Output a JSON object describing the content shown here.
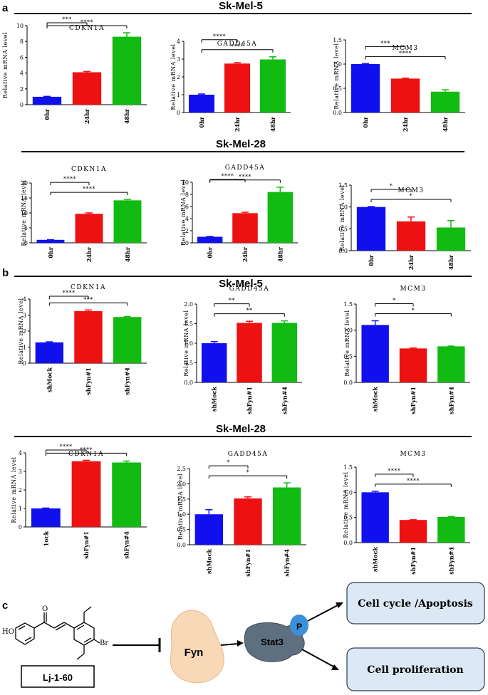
{
  "panel_labels": {
    "a": "a",
    "b": "b",
    "c": "c"
  },
  "section_titles": {
    "a_top": "Sk-Mel-5",
    "a_bottom": "Sk-Mel-28",
    "b_top": "Sk-Mel-5",
    "b_bottom": "Sk-Mel-28"
  },
  "colors": {
    "blue": "#1010ee",
    "red": "#ee1111",
    "green": "#11bb11"
  },
  "chart_data": [
    {
      "type": "bar",
      "title": "CDKN1A",
      "ylabel": "Relative mRNA level",
      "categories": [
        "0hr",
        "24hr",
        "48hr"
      ],
      "values": [
        1.0,
        4.1,
        8.6
      ],
      "errors": [
        0.05,
        0.1,
        0.5
      ],
      "ylim": [
        0,
        10
      ],
      "yticks": [
        0,
        2,
        4,
        6,
        8,
        10
      ],
      "ytick_labels": [
        "0",
        "2",
        "4",
        "6",
        "8",
        "10"
      ],
      "comparisons": [
        {
          "from": 0,
          "to": 1,
          "label": "***"
        },
        {
          "from": 0,
          "to": 2,
          "label": "****"
        }
      ]
    },
    {
      "type": "bar",
      "title": "GADD45A",
      "ylabel": "Relative mRNA level",
      "categories": [
        "0hr",
        "24hr",
        "48hr"
      ],
      "values": [
        1.0,
        2.75,
        2.98
      ],
      "errors": [
        0.04,
        0.05,
        0.15
      ],
      "ylim": [
        0,
        4
      ],
      "yticks": [
        0,
        1,
        2,
        3,
        4
      ],
      "ytick_labels": [
        "0",
        "1",
        "2",
        "3",
        "4"
      ],
      "comparisons": [
        {
          "from": 0,
          "to": 1,
          "label": "****"
        },
        {
          "from": 0,
          "to": 2,
          "label": "****"
        }
      ]
    },
    {
      "type": "bar",
      "title": "MCM3",
      "ylabel": "Relative mRNA level",
      "categories": [
        "0hr",
        "24hr",
        "48hr"
      ],
      "values": [
        1.0,
        0.7,
        0.43
      ],
      "errors": [
        0.01,
        0.01,
        0.04
      ],
      "ylim": [
        0,
        1.5
      ],
      "yticks": [
        0,
        0.5,
        1.0,
        1.5
      ],
      "ytick_labels": [
        "0.0",
        "0.5",
        "1.0",
        "1.5"
      ],
      "comparisons": [
        {
          "from": 0,
          "to": 1,
          "label": "***"
        },
        {
          "from": 0,
          "to": 2,
          "label": "****"
        }
      ]
    },
    {
      "type": "bar",
      "title": "CDKN1A",
      "ylabel": "Relative mRNA level",
      "categories": [
        "0hr",
        "24hr",
        "48hr"
      ],
      "values": [
        1.0,
        9.7,
        14.2
      ],
      "errors": [
        0.05,
        0.3,
        0.3
      ],
      "ylim": [
        0,
        20
      ],
      "yticks": [
        0,
        5,
        10,
        15,
        20
      ],
      "ytick_labels": [
        "0",
        "5",
        "10",
        "15",
        "20"
      ],
      "comparisons": [
        {
          "from": 0,
          "to": 1,
          "label": "****"
        },
        {
          "from": 0,
          "to": 2,
          "label": "****"
        }
      ]
    },
    {
      "type": "bar",
      "title": "GADD45A",
      "ylabel": "Relative mRNA level",
      "categories": [
        "0hr",
        "24hr",
        "48hr"
      ],
      "values": [
        1.0,
        4.9,
        8.4
      ],
      "errors": [
        0.05,
        0.15,
        0.8
      ],
      "ylim": [
        0,
        10
      ],
      "yticks": [
        0,
        2,
        4,
        6,
        8,
        10
      ],
      "ytick_labels": [
        "0",
        "2",
        "4",
        "6",
        "8",
        "10"
      ],
      "comparisons": [
        {
          "from": 0,
          "to": 1,
          "label": "****"
        },
        {
          "from": 0,
          "to": 2,
          "label": "****"
        }
      ]
    },
    {
      "type": "bar",
      "title": "MCM3",
      "ylabel": "Relative mRNA level",
      "categories": [
        "0hr",
        "24hr",
        "48hr"
      ],
      "values": [
        1.0,
        0.67,
        0.53
      ],
      "errors": [
        0.01,
        0.1,
        0.16
      ],
      "ylim": [
        0,
        1.5
      ],
      "yticks": [
        0,
        0.5,
        1.0,
        1.5
      ],
      "ytick_labels": [
        "0.0",
        "0.5",
        "1.0",
        "1.5"
      ],
      "comparisons": [
        {
          "from": 0,
          "to": 1,
          "label": "*"
        },
        {
          "from": 0,
          "to": 2,
          "label": "*"
        }
      ]
    },
    {
      "type": "bar",
      "title": "CDKN1A",
      "ylabel": "Relative mRNA level",
      "categories": [
        "shMock",
        "shFyn#1",
        "shFyn#4"
      ],
      "values": [
        1.3,
        3.25,
        2.88
      ],
      "errors": [
        0.03,
        0.07,
        0.03
      ],
      "ylim": [
        0,
        4
      ],
      "yticks": [
        0,
        1,
        2,
        3,
        4
      ],
      "ytick_labels": [
        "0",
        "1",
        "2",
        "3",
        "4"
      ],
      "comparisons": [
        {
          "from": 0,
          "to": 1,
          "label": "****"
        },
        {
          "from": 0,
          "to": 2,
          "label": "***"
        }
      ]
    },
    {
      "type": "bar",
      "title": "GADD45A",
      "ylabel": "Relative mRNA level",
      "categories": [
        "shMock",
        "shFyn#1",
        "shFyn#4"
      ],
      "values": [
        1.0,
        1.52,
        1.52
      ],
      "errors": [
        0.04,
        0.04,
        0.05
      ],
      "ylim": [
        0,
        2.0
      ],
      "yticks": [
        0,
        0.5,
        1.0,
        1.5,
        2.0
      ],
      "ytick_labels": [
        "0.0",
        "0.5",
        "1.0",
        "1.5",
        "2.0"
      ],
      "comparisons": [
        {
          "from": 0,
          "to": 1,
          "label": "**"
        },
        {
          "from": 0,
          "to": 2,
          "label": "**"
        }
      ]
    },
    {
      "type": "bar",
      "title": "MCM3",
      "ylabel": "Relative mRNA level",
      "categories": [
        "shMock",
        "shFyn#1",
        "shFyn#4"
      ],
      "values": [
        1.1,
        0.65,
        0.69
      ],
      "errors": [
        0.08,
        0.01,
        0.005
      ],
      "ylim": [
        0,
        1.5
      ],
      "yticks": [
        0,
        0.5,
        1.0,
        1.5
      ],
      "ytick_labels": [
        "0.0",
        "0.5",
        "1.0",
        "1.5"
      ],
      "comparisons": [
        {
          "from": 0,
          "to": 1,
          "label": "*"
        },
        {
          "from": 0,
          "to": 2,
          "label": "*"
        }
      ]
    },
    {
      "type": "bar",
      "title": "CDKN1A",
      "ylabel": "Relative mRNA level",
      "categories": [
        "1ock",
        "shFyn#1",
        "shFyn#4"
      ],
      "values": [
        1.0,
        3.55,
        3.48
      ],
      "errors": [
        0.02,
        0.05,
        0.08
      ],
      "ylim": [
        0,
        4
      ],
      "yticks": [
        0,
        1,
        2,
        3,
        4
      ],
      "ytick_labels": [
        "0",
        "1",
        "2",
        "3",
        "4"
      ],
      "comparisons": [
        {
          "from": 0,
          "to": 1,
          "label": "****"
        },
        {
          "from": 0,
          "to": 2,
          "label": "****"
        }
      ]
    },
    {
      "type": "bar",
      "title": "GADD45A",
      "ylabel": "Relative mRNA level",
      "categories": [
        "shMock",
        "shFyn#1",
        "shFyn#4"
      ],
      "values": [
        1.0,
        1.52,
        1.88
      ],
      "errors": [
        0.15,
        0.05,
        0.15
      ],
      "ylim": [
        0,
        2.5
      ],
      "yticks": [
        0,
        0.5,
        1.0,
        1.5,
        2.0,
        2.5
      ],
      "ytick_labels": [
        "0.0",
        "0.5",
        "1.0",
        "1.5",
        "2.0",
        "2.5"
      ],
      "comparisons": [
        {
          "from": 0,
          "to": 1,
          "label": "*"
        },
        {
          "from": 0,
          "to": 2,
          "label": "*"
        }
      ]
    },
    {
      "type": "bar",
      "title": "MCM3",
      "ylabel": "Relative mRNA level",
      "categories": [
        "shMock",
        "shFyn#1",
        "shFyn#4"
      ],
      "values": [
        1.0,
        0.45,
        0.51
      ],
      "errors": [
        0.02,
        0.005,
        0.01
      ],
      "ylim": [
        0,
        1.5
      ],
      "yticks": [
        0,
        0.5,
        1.0,
        1.5
      ],
      "ytick_labels": [
        "0.0",
        "0.5",
        "1.0",
        "1.5"
      ],
      "comparisons": [
        {
          "from": 0,
          "to": 1,
          "label": "****"
        },
        {
          "from": 0,
          "to": 2,
          "label": "****"
        }
      ]
    }
  ],
  "diagram": {
    "compound_label": "Lj-1-60",
    "ho_label": "HO",
    "br_label": "Br",
    "fyn_label": "Fyn",
    "stat3_label": "Stat3",
    "p_label": "P",
    "outcome_1": "Cell cycle /Apoptosis",
    "outcome_2": "Cell proliferation"
  }
}
